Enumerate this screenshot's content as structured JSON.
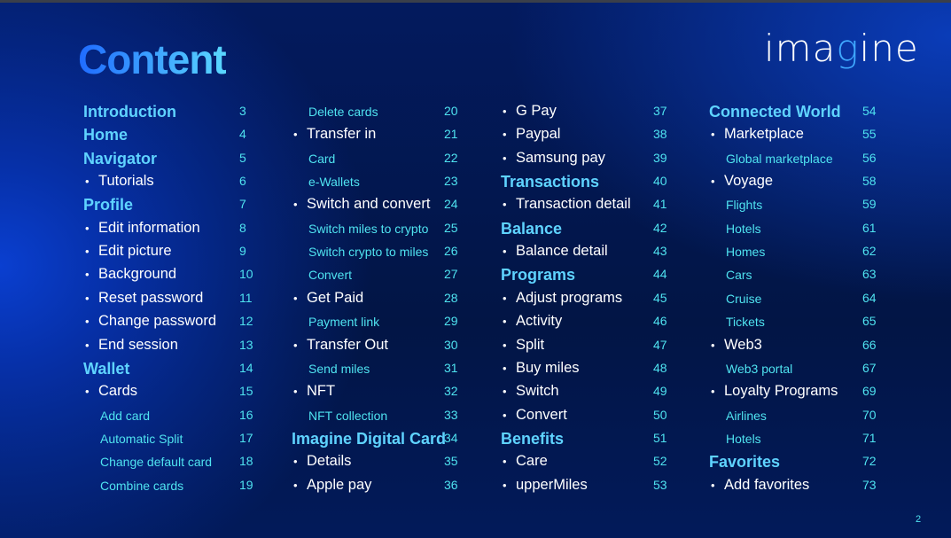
{
  "title": "Content",
  "logo": "imagine",
  "page_number": "2",
  "columns": [
    [
      {
        "t": "h",
        "label": "Introduction",
        "page": "3"
      },
      {
        "t": "h",
        "label": "Home",
        "page": "4"
      },
      {
        "t": "h",
        "label": "Navigator",
        "page": "5"
      },
      {
        "t": "b",
        "label": "Tutorials",
        "page": "6"
      },
      {
        "t": "h",
        "label": "Profile",
        "page": "7"
      },
      {
        "t": "b",
        "label": "Edit information",
        "page": "8"
      },
      {
        "t": "b",
        "label": "Edit picture",
        "page": "9"
      },
      {
        "t": "b",
        "label": "Background",
        "page": "10"
      },
      {
        "t": "b",
        "label": "Reset password",
        "page": "11"
      },
      {
        "t": "b",
        "label": "Change password",
        "page": "12"
      },
      {
        "t": "b",
        "label": "End session",
        "page": "13"
      },
      {
        "t": "h",
        "label": "Wallet",
        "page": "14"
      },
      {
        "t": "b",
        "label": "Cards",
        "page": "15"
      },
      {
        "t": "s",
        "label": "Add card",
        "page": "16"
      },
      {
        "t": "s",
        "label": "Automatic Split",
        "page": "17"
      },
      {
        "t": "s",
        "label": "Change default card",
        "page": "18"
      },
      {
        "t": "s",
        "label": "Combine cards",
        "page": "19"
      }
    ],
    [
      {
        "t": "s",
        "label": "Delete cards",
        "page": "20"
      },
      {
        "t": "b",
        "label": "Transfer in",
        "page": "21"
      },
      {
        "t": "s",
        "label": "Card",
        "page": "22"
      },
      {
        "t": "s",
        "label": "e-Wallets",
        "page": "23"
      },
      {
        "t": "b",
        "label": "Switch and convert",
        "page": "24"
      },
      {
        "t": "s",
        "label": "Switch miles to crypto",
        "page": "25"
      },
      {
        "t": "s",
        "label": "Switch crypto to miles",
        "page": "26"
      },
      {
        "t": "s",
        "label": "Convert",
        "page": "27"
      },
      {
        "t": "b",
        "label": "Get Paid",
        "page": "28"
      },
      {
        "t": "s",
        "label": "Payment link",
        "page": "29"
      },
      {
        "t": "b",
        "label": "Transfer Out",
        "page": "30"
      },
      {
        "t": "s",
        "label": "Send miles",
        "page": "31"
      },
      {
        "t": "b",
        "label": "NFT",
        "page": "32"
      },
      {
        "t": "s",
        "label": "NFT collection",
        "page": "33"
      },
      {
        "t": "h",
        "label": "Imagine Digital Card",
        "page": "34"
      },
      {
        "t": "b",
        "label": "Details",
        "page": "35"
      },
      {
        "t": "b",
        "label": "Apple pay",
        "page": "36"
      }
    ],
    [
      {
        "t": "b",
        "label": "G Pay",
        "page": "37"
      },
      {
        "t": "b",
        "label": "Paypal",
        "page": "38"
      },
      {
        "t": "b",
        "label": "Samsung pay",
        "page": "39"
      },
      {
        "t": "h",
        "label": "Transactions",
        "page": "40"
      },
      {
        "t": "b",
        "label": "Transaction detail",
        "page": "41"
      },
      {
        "t": "h",
        "label": "Balance",
        "page": "42"
      },
      {
        "t": "b",
        "label": "Balance detail",
        "page": "43"
      },
      {
        "t": "h",
        "label": "Programs",
        "page": "44"
      },
      {
        "t": "b",
        "label": "Adjust programs",
        "page": "45"
      },
      {
        "t": "b",
        "label": "Activity",
        "page": "46"
      },
      {
        "t": "b",
        "label": "Split",
        "page": "47"
      },
      {
        "t": "b",
        "label": "Buy miles",
        "page": "48"
      },
      {
        "t": "b",
        "label": "Switch",
        "page": "49"
      },
      {
        "t": "b",
        "label": "Convert",
        "page": "50"
      },
      {
        "t": "h",
        "label": "Benefits",
        "page": "51"
      },
      {
        "t": "b",
        "label": "Care",
        "page": "52"
      },
      {
        "t": "b",
        "label": "upperMiles",
        "page": "53"
      }
    ],
    [
      {
        "t": "h",
        "label": "Connected World",
        "page": "54"
      },
      {
        "t": "b",
        "label": "Marketplace",
        "page": "55"
      },
      {
        "t": "s",
        "label": "Global marketplace",
        "page": "56"
      },
      {
        "t": "b",
        "label": "Voyage",
        "page": "58"
      },
      {
        "t": "s",
        "label": "Flights",
        "page": "59"
      },
      {
        "t": "s",
        "label": "Hotels",
        "page": "61"
      },
      {
        "t": "s",
        "label": "Homes",
        "page": "62"
      },
      {
        "t": "s",
        "label": "Cars",
        "page": "63"
      },
      {
        "t": "s",
        "label": "Cruise",
        "page": "64"
      },
      {
        "t": "s",
        "label": "Tickets",
        "page": "65"
      },
      {
        "t": "b",
        "label": "Web3",
        "page": "66"
      },
      {
        "t": "s",
        "label": "Web3 portal",
        "page": "67"
      },
      {
        "t": "b",
        "label": "Loyalty Programs",
        "page": "69"
      },
      {
        "t": "s",
        "label": "Airlines",
        "page": "70"
      },
      {
        "t": "s",
        "label": "Hotels",
        "page": "71"
      },
      {
        "t": "h",
        "label": "Favorites",
        "page": "72"
      },
      {
        "t": "b",
        "label": "Add favorites",
        "page": "73"
      }
    ]
  ]
}
